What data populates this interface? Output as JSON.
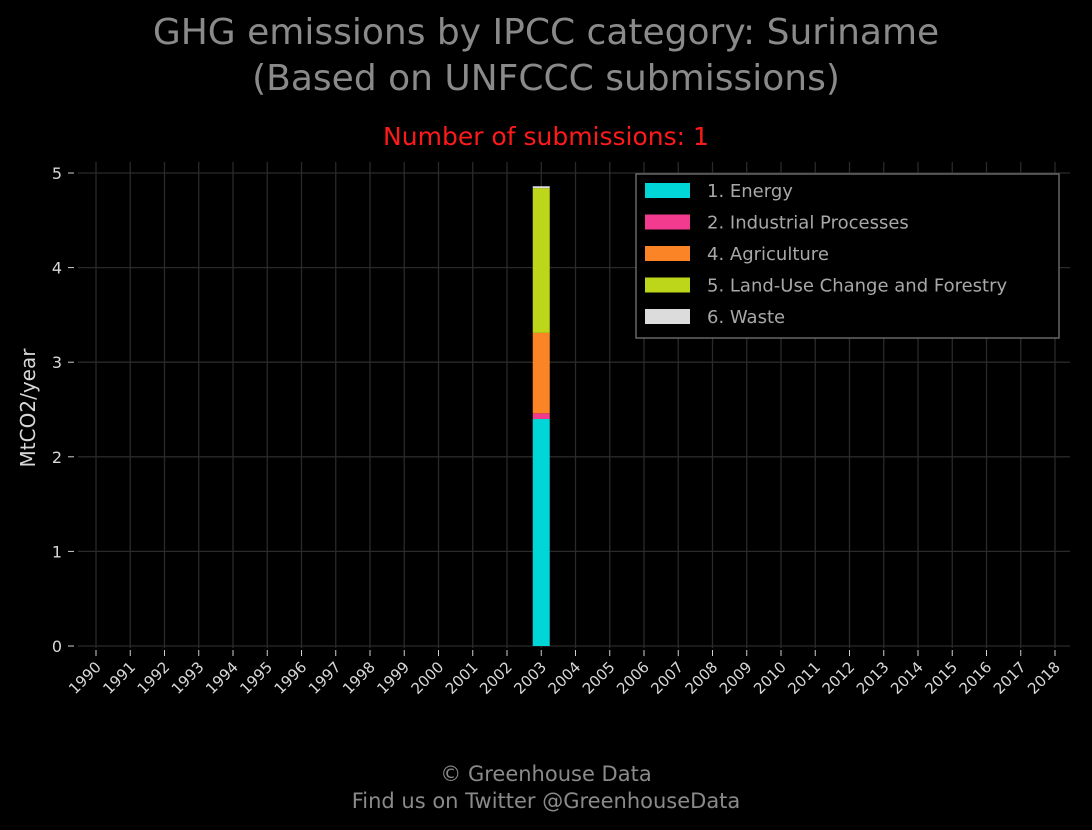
{
  "title_line1": "GHG emissions by IPCC category: Suriname",
  "title_line2": "(Based on UNFCCC submissions)",
  "subtitle": "Number of submissions: 1",
  "footer_line1": "© Greenhouse Data",
  "footer_line2": "Find us on Twitter @GreenhouseData",
  "chart_data": {
    "type": "bar",
    "stacked": true,
    "categories": [
      "1990",
      "1991",
      "1992",
      "1993",
      "1994",
      "1995",
      "1996",
      "1997",
      "1998",
      "1999",
      "2000",
      "2001",
      "2002",
      "2003",
      "2004",
      "2005",
      "2006",
      "2007",
      "2008",
      "2009",
      "2010",
      "2011",
      "2012",
      "2013",
      "2014",
      "2015",
      "2016",
      "2017",
      "2018"
    ],
    "series": [
      {
        "name": "1. Energy",
        "color": "#00d5d8",
        "values": [
          0,
          0,
          0,
          0,
          0,
          0,
          0,
          0,
          0,
          0,
          0,
          0,
          0,
          2.4,
          0,
          0,
          0,
          0,
          0,
          0,
          0,
          0,
          0,
          0,
          0,
          0,
          0,
          0,
          0
        ]
      },
      {
        "name": "2. Industrial Processes",
        "color": "#f23b8e",
        "values": [
          0,
          0,
          0,
          0,
          0,
          0,
          0,
          0,
          0,
          0,
          0,
          0,
          0,
          0.06,
          0,
          0,
          0,
          0,
          0,
          0,
          0,
          0,
          0,
          0,
          0,
          0,
          0,
          0,
          0
        ]
      },
      {
        "name": "4. Agriculture",
        "color": "#fb8526",
        "values": [
          0,
          0,
          0,
          0,
          0,
          0,
          0,
          0,
          0,
          0,
          0,
          0,
          0,
          0.85,
          0,
          0,
          0,
          0,
          0,
          0,
          0,
          0,
          0,
          0,
          0,
          0,
          0,
          0,
          0
        ]
      },
      {
        "name": "5. Land-Use Change and Forestry",
        "color": "#bed619",
        "values": [
          0,
          0,
          0,
          0,
          0,
          0,
          0,
          0,
          0,
          0,
          0,
          0,
          0,
          1.53,
          0,
          0,
          0,
          0,
          0,
          0,
          0,
          0,
          0,
          0,
          0,
          0,
          0,
          0,
          0
        ]
      },
      {
        "name": "6. Waste",
        "color": "#dcdcdc",
        "values": [
          0,
          0,
          0,
          0,
          0,
          0,
          0,
          0,
          0,
          0,
          0,
          0,
          0,
          0.02,
          0,
          0,
          0,
          0,
          0,
          0,
          0,
          0,
          0,
          0,
          0,
          0,
          0,
          0,
          0
        ]
      }
    ],
    "ylabel": "MtCO2/year",
    "xlabel": "",
    "ylim": [
      0,
      5
    ],
    "yticks": [
      "0",
      "1",
      "2",
      "3",
      "4",
      "5"
    ],
    "grid": true,
    "legend_position": "top-right"
  }
}
